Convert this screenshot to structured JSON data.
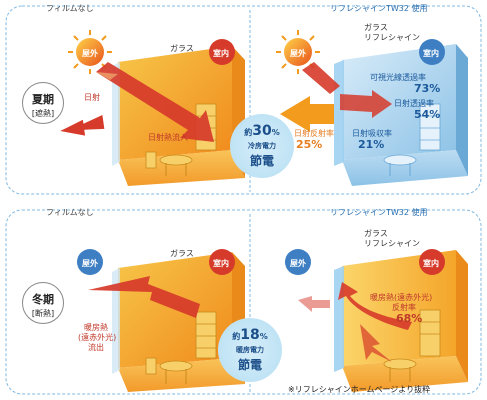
{
  "summer": {
    "header_left": "フィルムなし",
    "header_right": "リフレシャインTW32 使用",
    "season_main": "夏期",
    "season_sub": "[遮熱]",
    "outside": "屋外",
    "inside": "室内",
    "glass": "ガラス",
    "solar": "日射",
    "solar_inflow": "日射熱流入",
    "right_glass": "ガラス",
    "right_film": "リフレシャイン",
    "visible_label": "可視光線透過率",
    "visible_value": "73%",
    "solar_trans_label": "日射透過率",
    "solar_trans_value": "54%",
    "solar_reflect_label": "日射反射率",
    "solar_reflect_value": "25%",
    "solar_absorb_label": "日射吸収率",
    "solar_absorb_value": "21%",
    "saving_prefix": "約",
    "saving_value": "30",
    "saving_unit": "%",
    "saving_desc": "冷房電力",
    "saving_word": "節電"
  },
  "winter": {
    "header_left": "フィルムなし",
    "header_right": "リフレシャインTW32 使用",
    "season_main": "冬期",
    "season_sub": "[断熱]",
    "outside": "屋外",
    "inside": "室内",
    "glass": "ガラス",
    "heat_label_1": "暖房熱",
    "heat_label_2": "(遠赤外光)",
    "heat_label_3": "流出",
    "right_glass": "ガラス",
    "right_film": "リフレシャイン",
    "reflect_label_1": "暖房熱(遠赤外光)",
    "reflect_label_2": "反射率",
    "reflect_value": "68%",
    "saving_prefix": "約",
    "saving_value": "18",
    "saving_unit": "%",
    "saving_desc": "暖房電力",
    "saving_word": "節電"
  },
  "footnote": "※リフレシャインホームページより抜粋",
  "colors": {
    "heat_red": "#d63a2a",
    "reflect_orange": "#f29b1c",
    "room_warm": "#f5a623",
    "room_cool": "#7fb8e0",
    "save_circle": "#bfe3f5"
  }
}
